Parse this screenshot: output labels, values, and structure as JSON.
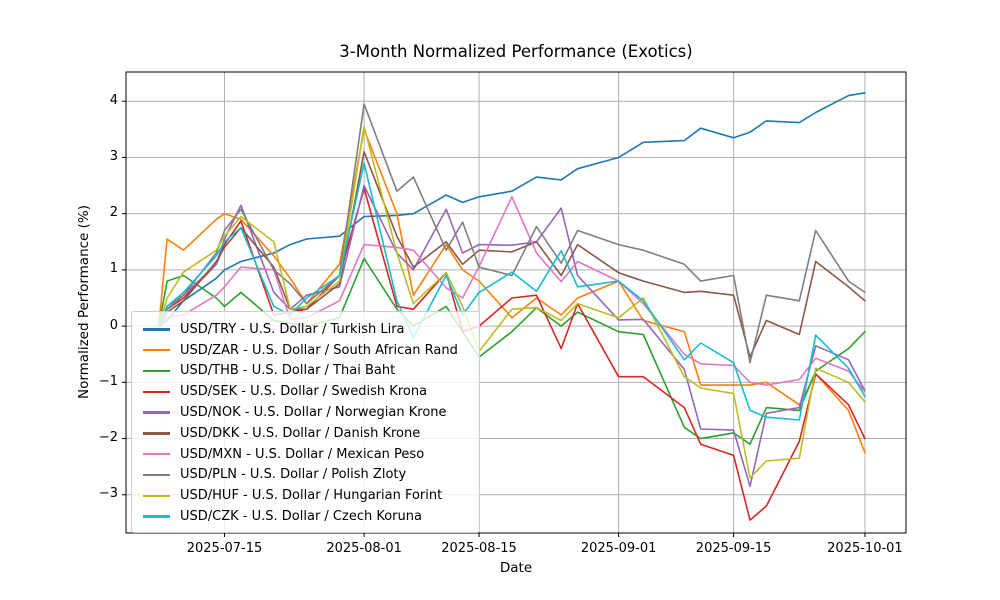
{
  "chart_data": {
    "type": "line",
    "title": "3-Month Normalized Performance (Exotics)",
    "xlabel": "Date",
    "ylabel": "Normalized Performance (%)",
    "grid": true,
    "legend_position": "center-left",
    "x_range": [
      "2025-07-03",
      "2025-10-06"
    ],
    "ylim": [
      -3.68,
      4.52
    ],
    "xticks": [
      "2025-07-15",
      "2025-08-01",
      "2025-08-15",
      "2025-09-01",
      "2025-09-15",
      "2025-10-01"
    ],
    "yticks": [
      4,
      3,
      2,
      1,
      0,
      -1,
      -2,
      -3
    ],
    "x": [
      "2025-07-07",
      "2025-07-08",
      "2025-07-10",
      "2025-07-14",
      "2025-07-15",
      "2025-07-17",
      "2025-07-21",
      "2025-07-23",
      "2025-07-25",
      "2025-07-29",
      "2025-08-01",
      "2025-08-05",
      "2025-08-07",
      "2025-08-11",
      "2025-08-13",
      "2025-08-15",
      "2025-08-19",
      "2025-08-22",
      "2025-08-25",
      "2025-08-27",
      "2025-09-01",
      "2025-09-04",
      "2025-09-09",
      "2025-09-11",
      "2025-09-15",
      "2025-09-17",
      "2025-09-19",
      "2025-09-23",
      "2025-09-25",
      "2025-09-29",
      "2025-10-01"
    ],
    "series": [
      {
        "name": "USD/TRY",
        "label": "USD/TRY - U.S. Dollar / Turkish Lira",
        "color": "#1f77b4",
        "values": [
          0,
          0.1,
          0.45,
          0.85,
          1.0,
          1.15,
          1.3,
          1.45,
          1.55,
          1.6,
          1.95,
          1.97,
          2.0,
          2.33,
          2.2,
          2.3,
          2.4,
          2.65,
          2.6,
          2.8,
          3.0,
          3.27,
          3.3,
          3.52,
          3.35,
          3.45,
          3.65,
          3.62,
          3.8,
          4.1,
          4.15
        ]
      },
      {
        "name": "USD/ZAR",
        "label": "USD/ZAR - U.S. Dollar / South African Rand",
        "color": "#ff7f0e",
        "values": [
          0,
          1.55,
          1.35,
          1.9,
          2.0,
          1.9,
          1.25,
          0.85,
          0.4,
          1.1,
          3.5,
          2.0,
          0.55,
          1.45,
          1.0,
          0.8,
          0.15,
          0.5,
          0.2,
          0.5,
          0.8,
          0.1,
          -0.1,
          -1.05,
          -1.05,
          -1.05,
          -1.0,
          -1.4,
          -0.85,
          -1.5,
          -2.25
        ]
      },
      {
        "name": "USD/THB",
        "label": "USD/THB - U.S. Dollar / Thai Baht",
        "color": "#2ca02c",
        "values": [
          0,
          0.8,
          0.9,
          0.5,
          0.35,
          0.6,
          0.1,
          0.05,
          0.0,
          0.15,
          1.2,
          0.3,
          0.0,
          0.35,
          -0.1,
          -0.55,
          -0.1,
          0.33,
          0.0,
          0.25,
          -0.1,
          -0.15,
          -1.8,
          -2.0,
          -1.9,
          -2.1,
          -1.45,
          -1.5,
          -0.8,
          -0.4,
          -0.1
        ]
      },
      {
        "name": "USD/SEK",
        "label": "USD/SEK - U.S. Dollar / Swedish Krona",
        "color": "#d62728",
        "values": [
          0,
          0.3,
          0.5,
          1.1,
          1.45,
          1.87,
          0.2,
          0.25,
          0.3,
          0.9,
          2.45,
          0.35,
          0.3,
          0.95,
          -0.1,
          0.0,
          0.5,
          0.55,
          -0.4,
          0.4,
          -0.9,
          -0.9,
          -1.45,
          -2.1,
          -2.3,
          -3.45,
          -3.2,
          -2.05,
          -0.85,
          -1.4,
          -2.0
        ]
      },
      {
        "name": "USD/NOK",
        "label": "USD/NOK - U.S. Dollar / Norwegian Krone",
        "color": "#9467bd",
        "values": [
          0,
          0.35,
          0.55,
          1.1,
          1.55,
          2.15,
          0.6,
          0.3,
          0.55,
          0.7,
          2.5,
          1.3,
          1.0,
          2.08,
          1.3,
          1.45,
          1.44,
          1.5,
          2.1,
          0.9,
          0.11,
          0.12,
          -0.77,
          -1.83,
          -1.85,
          -2.85,
          -1.55,
          -1.45,
          -0.35,
          -0.6,
          -1.15
        ]
      },
      {
        "name": "USD/DKK",
        "label": "USD/DKK - U.S. Dollar / Danish Krone",
        "color": "#8c564b",
        "values": [
          0,
          0.25,
          0.45,
          1.15,
          1.4,
          1.75,
          1.05,
          0.3,
          0.3,
          0.75,
          3.1,
          1.6,
          1.05,
          1.5,
          1.1,
          1.35,
          1.32,
          1.5,
          0.9,
          1.45,
          0.95,
          0.8,
          0.6,
          0.62,
          0.55,
          -0.55,
          0.1,
          -0.15,
          1.15,
          0.7,
          0.45
        ]
      },
      {
        "name": "USD/MXN",
        "label": "USD/MXN - U.S. Dollar / Mexican Peso",
        "color": "#e377c2",
        "values": [
          0,
          0.15,
          0.2,
          0.55,
          0.7,
          1.05,
          1.0,
          0.12,
          0.15,
          0.45,
          1.45,
          1.4,
          1.35,
          0.68,
          0.5,
          1.06,
          2.3,
          1.3,
          0.79,
          1.15,
          0.8,
          0.4,
          -0.5,
          -0.67,
          -0.7,
          -1.0,
          -1.05,
          -0.95,
          -0.57,
          -0.8,
          -1.17
        ]
      },
      {
        "name": "USD/PLN",
        "label": "USD/PLN - U.S. Dollar / Polish Zloty",
        "color": "#7f7f7f",
        "values": [
          0,
          0.3,
          0.55,
          1.3,
          1.7,
          2.08,
          1.0,
          0.75,
          0.4,
          0.9,
          3.95,
          2.4,
          2.65,
          1.35,
          1.85,
          1.05,
          0.9,
          1.77,
          1.12,
          1.7,
          1.45,
          1.35,
          1.1,
          0.8,
          0.9,
          -0.65,
          0.55,
          0.45,
          1.7,
          0.8,
          0.6
        ]
      },
      {
        "name": "USD/HUF",
        "label": "USD/HUF - U.S. Dollar / Hungarian Forint",
        "color": "#bcbd22",
        "values": [
          0,
          0.5,
          0.96,
          1.35,
          1.6,
          1.95,
          1.5,
          0.3,
          0.35,
          0.8,
          3.55,
          1.3,
          0.4,
          0.95,
          0.35,
          -0.45,
          0.3,
          0.33,
          0.1,
          0.4,
          0.15,
          0.5,
          -0.9,
          -1.1,
          -1.2,
          -2.7,
          -2.4,
          -2.35,
          -0.75,
          -1.0,
          -1.35
        ]
      },
      {
        "name": "USD/CZK",
        "label": "USD/CZK - U.S. Dollar / Czech Koruna",
        "color": "#17becf",
        "values": [
          0,
          0.35,
          0.6,
          1.25,
          1.5,
          1.75,
          0.35,
          0.2,
          0.5,
          0.9,
          2.9,
          0.45,
          -0.2,
          0.9,
          0.2,
          0.6,
          0.96,
          0.62,
          1.34,
          0.7,
          0.8,
          0.45,
          -0.6,
          -0.3,
          -0.65,
          -1.5,
          -1.62,
          -1.67,
          -0.16,
          -0.75,
          -1.25
        ]
      }
    ],
    "style": {
      "grid_color": "#b0b0b0",
      "spine_color": "#000000",
      "background": "#ffffff",
      "line_width": 1.6
    }
  }
}
